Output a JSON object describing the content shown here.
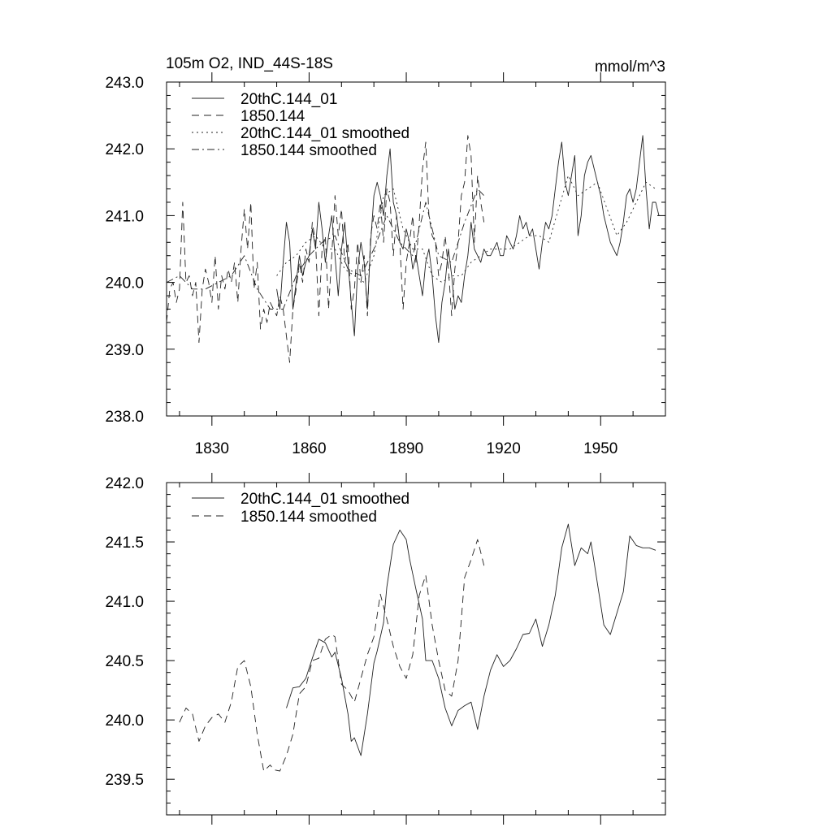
{
  "chart_data": [
    {
      "type": "line",
      "title_left": "105m O2, IND_44S-18S",
      "title_right": "mmol/m^3",
      "xlabel": "",
      "ylabel": "",
      "xlim": [
        1816,
        1970
      ],
      "ylim": [
        238.0,
        243.0
      ],
      "x_ticks": [
        1830,
        1860,
        1890,
        1920,
        1950
      ],
      "x_tick_labels": [
        "1830",
        "1860",
        "1890",
        "1920",
        "1950"
      ],
      "y_ticks": [
        238.0,
        239.0,
        240.0,
        241.0,
        242.0,
        243.0
      ],
      "y_tick_labels": [
        "238.0",
        "239.0",
        "240.0",
        "241.0",
        "242.0",
        "243.0"
      ],
      "legend": [
        "20thC.144_01",
        "1850.144",
        "20thC.144_01 smoothed",
        "1850.144 smoothed"
      ],
      "series": [
        {
          "name": "20thC.144_01",
          "style": "solid",
          "x": [
            1850,
            1851,
            1852,
            1853,
            1854,
            1855,
            1856,
            1857,
            1858,
            1859,
            1860,
            1861,
            1862,
            1863,
            1864,
            1865,
            1866,
            1867,
            1868,
            1869,
            1870,
            1871,
            1872,
            1873,
            1874,
            1875,
            1876,
            1877,
            1878,
            1879,
            1880,
            1881,
            1882,
            1883,
            1884,
            1885,
            1886,
            1887,
            1888,
            1889,
            1890,
            1891,
            1892,
            1893,
            1894,
            1895,
            1896,
            1897,
            1898,
            1899,
            1900,
            1901,
            1902,
            1903,
            1904,
            1905,
            1906,
            1907,
            1908,
            1909,
            1910,
            1911,
            1912,
            1913,
            1914,
            1915,
            1916,
            1917,
            1918,
            1919,
            1920,
            1921,
            1922,
            1923,
            1924,
            1925,
            1926,
            1927,
            1928,
            1929,
            1930,
            1931,
            1932,
            1933,
            1934,
            1935,
            1936,
            1937,
            1938,
            1939,
            1940,
            1941,
            1942,
            1943,
            1944,
            1945,
            1946,
            1947,
            1948,
            1949,
            1950,
            1951,
            1952,
            1953,
            1954,
            1955,
            1956,
            1957,
            1958,
            1959,
            1960,
            1961,
            1962,
            1963,
            1964,
            1965,
            1966,
            1967,
            1968
          ],
          "values": [
            239.9,
            239.6,
            240.3,
            240.9,
            240.6,
            239.6,
            240.0,
            240.4,
            240.1,
            240.3,
            240.4,
            240.8,
            240.5,
            241.2,
            240.8,
            240.3,
            240.7,
            241.0,
            240.4,
            239.8,
            240.5,
            240.9,
            240.3,
            239.7,
            239.2,
            240.2,
            240.6,
            240.3,
            239.6,
            240.6,
            241.3,
            241.5,
            241.3,
            241.0,
            241.6,
            242.0,
            241.2,
            241.0,
            240.6,
            240.5,
            240.8,
            240.6,
            240.2,
            240.4,
            240.1,
            239.8,
            240.3,
            240.5,
            240.1,
            239.5,
            239.1,
            239.7,
            240.0,
            240.5,
            240.1,
            239.6,
            239.8,
            239.7,
            240.1,
            240.4,
            240.9,
            240.5,
            240.4,
            240.3,
            240.5,
            240.4,
            240.4,
            240.5,
            240.6,
            240.4,
            240.4,
            240.7,
            240.6,
            240.5,
            240.7,
            241.0,
            240.8,
            240.9,
            240.7,
            240.8,
            240.5,
            240.2,
            240.6,
            240.9,
            240.8,
            241.0,
            241.4,
            241.8,
            242.1,
            241.5,
            241.3,
            241.6,
            241.9,
            240.7,
            241.0,
            241.6,
            241.8,
            241.9,
            241.7,
            241.5,
            241.3,
            241.0,
            240.8,
            240.6,
            240.5,
            240.4,
            240.6,
            240.9,
            241.3,
            241.4,
            241.2,
            241.4,
            241.8,
            242.2,
            241.4,
            240.8,
            241.2,
            241.2,
            241.0
          ]
        },
        {
          "name": "1850.144",
          "style": "dashed",
          "x": [
            1816,
            1817,
            1818,
            1819,
            1820,
            1821,
            1822,
            1823,
            1824,
            1825,
            1826,
            1827,
            1828,
            1829,
            1830,
            1831,
            1832,
            1833,
            1834,
            1835,
            1836,
            1837,
            1838,
            1839,
            1840,
            1841,
            1842,
            1843,
            1844,
            1845,
            1846,
            1847,
            1848,
            1849,
            1850,
            1851,
            1852,
            1853,
            1854,
            1855,
            1856,
            1857,
            1858,
            1859,
            1860,
            1861,
            1862,
            1863,
            1864,
            1865,
            1866,
            1867,
            1868,
            1869,
            1870,
            1871,
            1872,
            1873,
            1874,
            1875,
            1876,
            1877,
            1878,
            1879,
            1880,
            1881,
            1882,
            1883,
            1884,
            1885,
            1886,
            1887,
            1888,
            1889,
            1890,
            1891,
            1892,
            1893,
            1894,
            1895,
            1896,
            1897,
            1898,
            1899,
            1900,
            1901,
            1902,
            1903,
            1904,
            1905,
            1906,
            1907,
            1908,
            1909,
            1910,
            1911,
            1912,
            1913,
            1914
          ],
          "values": [
            239.4,
            239.9,
            240.0,
            239.7,
            239.9,
            241.2,
            240.0,
            240.1,
            239.8,
            240.0,
            239.1,
            239.9,
            240.2,
            240.0,
            239.7,
            240.4,
            239.6,
            240.1,
            239.9,
            240.2,
            240.0,
            240.3,
            239.7,
            240.5,
            241.1,
            240.5,
            241.2,
            239.9,
            240.3,
            239.3,
            239.6,
            239.4,
            239.7,
            239.6,
            239.5,
            239.8,
            239.6,
            239.2,
            238.8,
            239.6,
            239.9,
            240.3,
            240.0,
            240.5,
            240.3,
            240.9,
            240.6,
            239.5,
            240.5,
            240.7,
            239.6,
            240.4,
            241.3,
            240.7,
            241.1,
            240.3,
            240.6,
            239.6,
            239.9,
            240.6,
            240.0,
            240.4,
            239.5,
            240.7,
            241.0,
            240.8,
            241.2,
            240.6,
            241.4,
            241.2,
            240.4,
            241.0,
            240.6,
            239.6,
            240.3,
            240.6,
            241.0,
            240.3,
            240.9,
            241.7,
            242.1,
            241.0,
            240.7,
            240.6,
            240.1,
            240.3,
            240.7,
            240.2,
            239.5,
            240.2,
            240.6,
            241.3,
            241.5,
            242.2,
            241.9,
            240.6,
            241.6,
            241.2,
            240.9
          ]
        },
        {
          "name": "20thC.144_01 smoothed",
          "style": "dotted",
          "x": [
            1850,
            1853,
            1856,
            1859,
            1862,
            1865,
            1868,
            1871,
            1874,
            1877,
            1880,
            1883,
            1886,
            1889,
            1892,
            1895,
            1898,
            1901,
            1904,
            1907,
            1910,
            1913,
            1916,
            1919,
            1922,
            1925,
            1928,
            1931,
            1934,
            1937,
            1940,
            1943,
            1946,
            1949,
            1952,
            1955,
            1958,
            1961,
            1964,
            1967
          ],
          "values": [
            240.1,
            240.3,
            240.4,
            240.6,
            240.7,
            240.5,
            240.5,
            240.2,
            240.1,
            240.0,
            240.4,
            241.3,
            241.4,
            240.8,
            240.5,
            240.5,
            240.1,
            240.0,
            240.1,
            240.1,
            240.3,
            240.4,
            240.5,
            240.5,
            240.5,
            240.6,
            240.7,
            240.7,
            240.6,
            241.1,
            241.6,
            241.3,
            241.4,
            241.5,
            241.1,
            240.7,
            240.9,
            241.2,
            241.5,
            241.4
          ]
        },
        {
          "name": "1850.144 smoothed",
          "style": "dashdot",
          "x": [
            1816,
            1820,
            1824,
            1828,
            1832,
            1836,
            1840,
            1844,
            1848,
            1852,
            1856,
            1860,
            1864,
            1868,
            1872,
            1876,
            1880,
            1884,
            1888,
            1892,
            1896,
            1900,
            1904,
            1908,
            1912,
            1914
          ],
          "values": [
            240.0,
            240.1,
            239.9,
            239.9,
            240.0,
            240.1,
            240.4,
            239.9,
            239.6,
            239.6,
            240.1,
            240.4,
            240.6,
            240.7,
            240.2,
            240.1,
            240.5,
            241.0,
            240.6,
            240.4,
            241.2,
            240.4,
            240.3,
            240.9,
            241.4,
            241.3
          ]
        }
      ]
    },
    {
      "type": "line",
      "title": "",
      "xlabel": "",
      "ylabel": "",
      "xlim": [
        1816,
        1970
      ],
      "ylim": [
        239.2,
        242.0
      ],
      "x_ticks": [
        1830,
        1860,
        1890,
        1920,
        1950
      ],
      "y_ticks": [
        239.5,
        240.0,
        240.5,
        241.0,
        241.5,
        242.0
      ],
      "y_tick_labels": [
        "239.5",
        "240.0",
        "240.5",
        "241.0",
        "241.5",
        "242.0"
      ],
      "legend": [
        "20thC.144_01 smoothed",
        "1850.144 smoothed"
      ],
      "series": [
        {
          "name": "20thC.144_01 smoothed",
          "style": "solid",
          "x": [
            1853,
            1855,
            1857,
            1859,
            1861,
            1863,
            1865,
            1867,
            1868,
            1870,
            1872,
            1873,
            1874,
            1876,
            1878,
            1880,
            1881,
            1883,
            1884,
            1886,
            1888,
            1890,
            1891,
            1893,
            1895,
            1896,
            1898,
            1900,
            1902,
            1904,
            1906,
            1908,
            1910,
            1912,
            1914,
            1916,
            1918,
            1920,
            1922,
            1924,
            1926,
            1928,
            1930,
            1932,
            1934,
            1936,
            1938,
            1940,
            1942,
            1944,
            1946,
            1947,
            1949,
            1951,
            1953,
            1955,
            1957,
            1959,
            1961,
            1963,
            1965,
            1967
          ],
          "values": [
            240.1,
            240.27,
            240.28,
            240.35,
            240.52,
            240.68,
            240.65,
            240.53,
            240.57,
            240.35,
            240.05,
            239.82,
            239.85,
            239.7,
            240.05,
            240.48,
            240.58,
            240.82,
            241.12,
            241.48,
            241.6,
            241.52,
            241.36,
            241.1,
            240.85,
            240.5,
            240.5,
            240.35,
            240.1,
            239.95,
            240.08,
            240.12,
            240.15,
            239.92,
            240.2,
            240.42,
            240.55,
            240.45,
            240.5,
            240.6,
            240.72,
            240.73,
            240.85,
            240.62,
            240.8,
            241.05,
            241.45,
            241.65,
            241.3,
            241.45,
            241.4,
            241.5,
            241.15,
            240.8,
            240.72,
            240.9,
            241.08,
            241.55,
            241.47,
            241.45,
            241.45,
            241.43
          ]
        },
        {
          "name": "1850.144 smoothed",
          "style": "dashed",
          "x": [
            1820,
            1822,
            1824,
            1826,
            1828,
            1830,
            1832,
            1834,
            1836,
            1838,
            1840,
            1842,
            1844,
            1846,
            1848,
            1849,
            1851,
            1853,
            1855,
            1857,
            1859,
            1861,
            1863,
            1865,
            1867,
            1868,
            1870,
            1872,
            1874,
            1876,
            1878,
            1880,
            1882,
            1884,
            1886,
            1888,
            1890,
            1892,
            1894,
            1896,
            1898,
            1900,
            1902,
            1904,
            1906,
            1908,
            1910,
            1912,
            1914
          ],
          "values": [
            239.98,
            240.1,
            240.05,
            239.82,
            239.95,
            240.02,
            240.05,
            239.98,
            240.15,
            240.45,
            240.5,
            240.28,
            239.88,
            239.57,
            239.62,
            239.58,
            239.57,
            239.7,
            239.88,
            240.22,
            240.28,
            240.5,
            240.52,
            240.68,
            240.72,
            240.7,
            240.3,
            240.25,
            240.15,
            240.35,
            240.55,
            240.7,
            241.06,
            240.85,
            240.62,
            240.45,
            240.35,
            240.55,
            241.05,
            241.22,
            240.8,
            240.5,
            240.25,
            240.2,
            240.5,
            241.2,
            241.35,
            241.52,
            241.3
          ]
        }
      ]
    }
  ]
}
